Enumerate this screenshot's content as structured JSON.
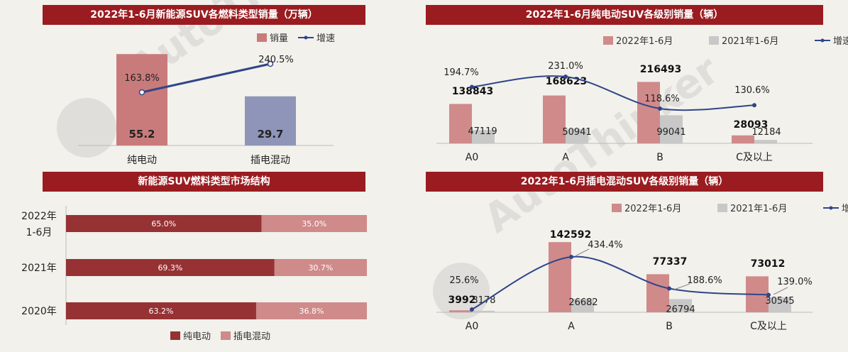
{
  "colors": {
    "title_bg": "#9a1c20",
    "bev_bar": "#c97b7b",
    "phev_bar": "#8f95b8",
    "bar_2022": "#d08a8a",
    "bar_2021": "#c8c8c8",
    "line": "#2f4589",
    "stack_dark": "#963234",
    "stack_light": "#cf8a8a"
  },
  "chart_data": [
    {
      "id": "c1",
      "type": "bar",
      "title": "2022年1-6月新能源SUV各燃料类型销量（万辆）",
      "categories": [
        "纯电动",
        "插电混动"
      ],
      "legend": [
        "销量",
        "增速"
      ],
      "series": [
        {
          "name": "销量",
          "type": "bar",
          "values": [
            55.2,
            29.7
          ],
          "labels": [
            "55.2",
            "29.7"
          ]
        },
        {
          "name": "增速",
          "type": "line",
          "values": [
            163.8,
            240.5
          ],
          "labels": [
            "163.8%",
            "240.5%"
          ]
        }
      ]
    },
    {
      "id": "c2",
      "type": "bar",
      "title": "2022年1-6月纯电动SUV各级别销量（辆）",
      "categories": [
        "A0",
        "A",
        "B",
        "C及以上"
      ],
      "legend": [
        "2022年1-6月",
        "2021年1-6月",
        "增速"
      ],
      "series": [
        {
          "name": "2022年1-6月",
          "type": "bar",
          "values": [
            138843,
            168623,
            216493,
            28093
          ],
          "labels": [
            "138843",
            "168623",
            "216493",
            "28093"
          ]
        },
        {
          "name": "2021年1-6月",
          "type": "bar",
          "values": [
            47119,
            50941,
            99041,
            12184
          ],
          "labels": [
            "47119",
            "50941",
            "99041",
            "12184"
          ]
        },
        {
          "name": "增速",
          "type": "line",
          "values": [
            194.7,
            231.0,
            118.6,
            130.6
          ],
          "labels": [
            "194.7%",
            "231.0%",
            "118.6%",
            "130.6%"
          ]
        }
      ]
    },
    {
      "id": "c3",
      "type": "bar",
      "title": "新能源SUV燃料类型市场结构",
      "orientation": "horizontal-stacked-100",
      "categories": [
        [
          "2022年",
          "1-6月"
        ],
        [
          "2021年"
        ],
        [
          "2020年"
        ]
      ],
      "legend": [
        "纯电动",
        "插电混动"
      ],
      "series": [
        {
          "name": "纯电动",
          "values": [
            65.0,
            69.3,
            63.2
          ],
          "labels": [
            "65.0%",
            "69.3%",
            "63.2%"
          ]
        },
        {
          "name": "插电混动",
          "values": [
            35.0,
            30.7,
            36.8
          ],
          "labels": [
            "35.0%",
            "30.7%",
            "36.8%"
          ]
        }
      ]
    },
    {
      "id": "c4",
      "type": "bar",
      "title": "2022年1-6月插电混动SUV各级别销量（辆）",
      "categories": [
        "A0",
        "A",
        "B",
        "C及以上"
      ],
      "legend": [
        "2022年1-6月",
        "2021年1-6月",
        "增速"
      ],
      "series": [
        {
          "name": "2022年1-6月",
          "type": "bar",
          "values": [
            3992,
            142592,
            77337,
            73012
          ],
          "labels": [
            "3992",
            "142592",
            "77337",
            "73012"
          ]
        },
        {
          "name": "2021年1-6月",
          "type": "bar",
          "values": [
            3178,
            26682,
            26794,
            30545
          ],
          "labels": [
            "3178",
            "26682",
            "26794",
            "30545"
          ]
        },
        {
          "name": "增速",
          "type": "line",
          "values": [
            25.6,
            434.4,
            188.6,
            139.0
          ],
          "labels": [
            "25.6%",
            "434.4%",
            "188.6%",
            "139.0%"
          ]
        }
      ]
    }
  ]
}
